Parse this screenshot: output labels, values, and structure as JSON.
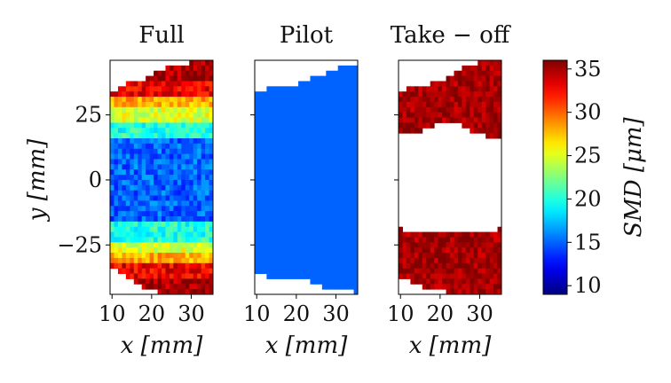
{
  "chart_data": {
    "type": "heatmap",
    "colormap": "jet",
    "x_ticks": [
      10,
      20,
      30
    ],
    "y_ticks": [
      25,
      0,
      -25
    ],
    "xlim": [
      9.5,
      35.5
    ],
    "ylim": [
      -44,
      46
    ],
    "grid": false,
    "colorbar": {
      "label": "SMD [μm]",
      "range": [
        9,
        36
      ],
      "ticks": [
        10,
        15,
        20,
        25,
        30,
        35
      ]
    },
    "panels": [
      {
        "title": "Full",
        "xlabel": "x [mm]",
        "ylabel": "y [mm]",
        "core_value": 15,
        "bands": [
          {
            "y": 40,
            "value": 35,
            "spread": 1.5
          },
          {
            "y": 35,
            "value": 33,
            "spread": 2.5
          },
          {
            "y": 30,
            "value": 28,
            "spread": 3
          },
          {
            "y": 25,
            "value": 25,
            "spread": 3
          },
          {
            "y": 21,
            "value": 20,
            "spread": 2
          },
          {
            "y": -21,
            "value": 20,
            "spread": 2
          },
          {
            "y": -25,
            "value": 25,
            "spread": 3
          },
          {
            "y": -30,
            "value": 28,
            "spread": 3
          },
          {
            "y": -35,
            "value": 33,
            "spread": 2.5
          },
          {
            "y": -40,
            "value": 35,
            "spread": 1.5
          }
        ],
        "upper_edge": [
          [
            10,
            34
          ],
          [
            14,
            37
          ],
          [
            18,
            38
          ],
          [
            22,
            42
          ],
          [
            26,
            44
          ],
          [
            30,
            45
          ],
          [
            35,
            46
          ]
        ],
        "lower_edge": [
          [
            10,
            -33
          ],
          [
            14,
            -38
          ],
          [
            18,
            -41
          ],
          [
            22,
            -43
          ],
          [
            26,
            -44
          ],
          [
            35,
            -44
          ]
        ],
        "hole": null
      },
      {
        "title": "Pilot",
        "xlabel": "x [mm]",
        "ylabel": "",
        "core_value": 15,
        "bands": [],
        "upper_edge": [
          [
            10,
            34
          ],
          [
            13,
            35
          ],
          [
            17,
            36
          ],
          [
            21,
            37
          ],
          [
            24,
            39
          ],
          [
            28,
            41
          ],
          [
            31,
            43
          ],
          [
            35,
            44
          ]
        ],
        "lower_edge": [
          [
            10,
            -36
          ],
          [
            13,
            -37
          ],
          [
            20,
            -38
          ],
          [
            24,
            -39
          ],
          [
            28,
            -42
          ],
          [
            35,
            -43
          ]
        ],
        "hole": null
      },
      {
        "title": "Take − off",
        "xlabel": "x [mm]",
        "ylabel": "",
        "core_value": 35,
        "bands": [],
        "upper_edge": [
          [
            10,
            34
          ],
          [
            14,
            36
          ],
          [
            18,
            37
          ],
          [
            22,
            39
          ],
          [
            26,
            44
          ],
          [
            30,
            45
          ],
          [
            35,
            46
          ]
        ],
        "lower_edge": [
          [
            10,
            -37
          ],
          [
            14,
            -40
          ],
          [
            18,
            -42
          ],
          [
            22,
            -43
          ],
          [
            35,
            -43
          ]
        ],
        "hole": {
          "top": [
            [
              10,
              19
            ],
            [
              15,
              19
            ],
            [
              20,
              22
            ],
            [
              24,
              22
            ],
            [
              28,
              19
            ],
            [
              32,
              17
            ],
            [
              35,
              17
            ]
          ],
          "bottom": [
            [
              10,
              -19
            ],
            [
              14,
              -20
            ],
            [
              18,
              -21
            ],
            [
              22,
              -21
            ],
            [
              26,
              -21
            ],
            [
              30,
              -20
            ],
            [
              35,
              -19
            ]
          ]
        }
      }
    ]
  }
}
